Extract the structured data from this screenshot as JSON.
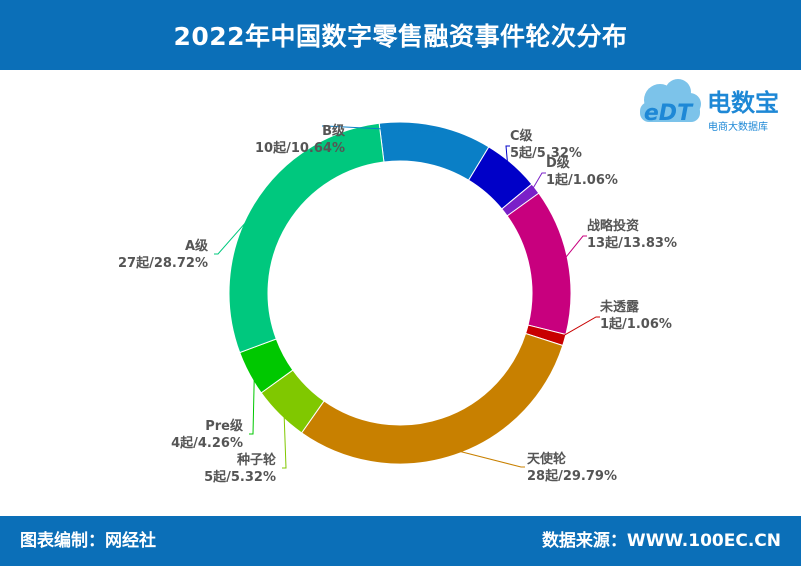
{
  "header": {
    "title": "2022年中国数字零售融资事件轮次分布"
  },
  "footer": {
    "credit": "图表编制：网经社",
    "source": "数据来源：WWW.100EC.CN"
  },
  "logo": {
    "mark": "eDT",
    "name": "电数宝",
    "tagline": "电商大数据库"
  },
  "colors": {
    "header_bg": "#0b6fb8",
    "B级": "#0a7fc6",
    "C级": "#0000c8",
    "D级": "#7a20c8",
    "战略投资": "#c8007e",
    "未透露": "#c80000",
    "天使轮": "#c88000",
    "种子轮": "#80c800",
    "Pre级": "#00c800",
    "A级": "#00c87e"
  },
  "chart_data": {
    "type": "pie",
    "donut": true,
    "title": "2022年中国数字零售融资事件轮次分布",
    "slices": [
      {
        "label": "B级",
        "count_label": "10起/10.64%",
        "count": 10,
        "percent": 10.64,
        "color": "#0a7fc6"
      },
      {
        "label": "C级",
        "count_label": "5起/5.32%",
        "count": 5,
        "percent": 5.32,
        "color": "#0000c8"
      },
      {
        "label": "D级",
        "count_label": "1起/1.06%",
        "count": 1,
        "percent": 1.06,
        "color": "#7a20c8"
      },
      {
        "label": "战略投资",
        "count_label": "13起/13.83%",
        "count": 13,
        "percent": 13.83,
        "color": "#c8007e"
      },
      {
        "label": "未透露",
        "count_label": "1起/1.06%",
        "count": 1,
        "percent": 1.06,
        "color": "#c80000"
      },
      {
        "label": "天使轮",
        "count_label": "28起/29.79%",
        "count": 28,
        "percent": 29.79,
        "color": "#c88000"
      },
      {
        "label": "种子轮",
        "count_label": "5起/5.32%",
        "count": 5,
        "percent": 5.32,
        "color": "#80c800"
      },
      {
        "label": "Pre级",
        "count_label": "4起/4.26%",
        "count": 4,
        "percent": 4.26,
        "color": "#00c800"
      },
      {
        "label": "A级",
        "count_label": "27起/28.72%",
        "count": 27,
        "percent": 28.72,
        "color": "#00c87e"
      }
    ],
    "start_angle_deg": -7,
    "legend": "none"
  }
}
